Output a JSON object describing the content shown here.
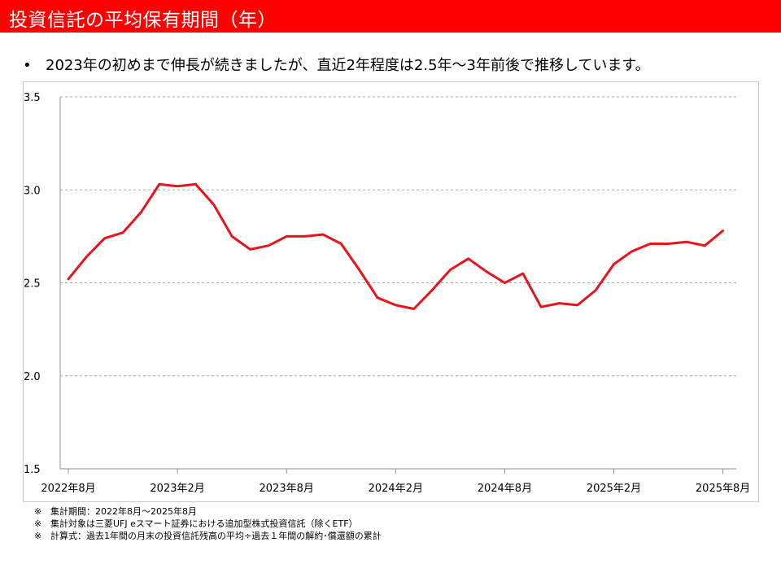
{
  "header": {
    "title": "投資信託の平均保有期間（年）"
  },
  "bullet": {
    "marker": "•",
    "text": "2023年の初めまで伸長が続きましたが、直近2年程度は2.5年～3年前後で推移しています。"
  },
  "colors": {
    "title_bar": "#ff0000",
    "series_line": "#e8141c",
    "gridline": "#a6a6a6",
    "axis": "#8c8c8c"
  },
  "chart_data": {
    "type": "line",
    "title": "",
    "xlabel": "",
    "ylabel": "",
    "ylim": [
      1.5,
      3.5
    ],
    "y_ticks": [
      "1.5",
      "2.0",
      "2.5",
      "3.0",
      "3.5"
    ],
    "grid": "horizontal dashed",
    "legend": "none",
    "x_tick_labels": [
      "2022年8月",
      "2023年2月",
      "2023年8月",
      "2024年2月",
      "2024年8月",
      "2025年2月",
      "2025年8月"
    ],
    "x": [
      "2022-08",
      "2022-09",
      "2022-10",
      "2022-11",
      "2022-12",
      "2023-01",
      "2023-02",
      "2023-03",
      "2023-04",
      "2023-05",
      "2023-06",
      "2023-07",
      "2023-08",
      "2023-09",
      "2023-10",
      "2023-11",
      "2023-12",
      "2024-01",
      "2024-02",
      "2024-03",
      "2024-04",
      "2024-05",
      "2024-06",
      "2024-07",
      "2024-08",
      "2024-09",
      "2024-10",
      "2024-11",
      "2024-12",
      "2025-01",
      "2025-02",
      "2025-03",
      "2025-04",
      "2025-05",
      "2025-06",
      "2025-07",
      "2025-08"
    ],
    "series": [
      {
        "values": [
          2.52,
          2.64,
          2.74,
          2.77,
          2.88,
          3.03,
          3.02,
          3.03,
          2.92,
          2.75,
          2.68,
          2.7,
          2.75,
          2.75,
          2.76,
          2.71,
          2.57,
          2.42,
          2.38,
          2.36,
          2.46,
          2.57,
          2.63,
          2.56,
          2.5,
          2.55,
          2.37,
          2.39,
          2.38,
          2.46,
          2.6,
          2.67,
          2.71,
          2.71,
          2.72,
          2.7,
          2.78
        ]
      }
    ]
  },
  "notes": [
    {
      "mark": "※",
      "text": "集計期間：2022年8月～2025年8月"
    },
    {
      "mark": "※",
      "text": "集計対象は三菱UFJ eスマート証券における追加型株式投資信託（除くETF）"
    },
    {
      "mark": "※",
      "text": "計算式：過去1年間の月末の投資信託残高の平均÷過去１年間の解約･償還額の累計"
    }
  ]
}
